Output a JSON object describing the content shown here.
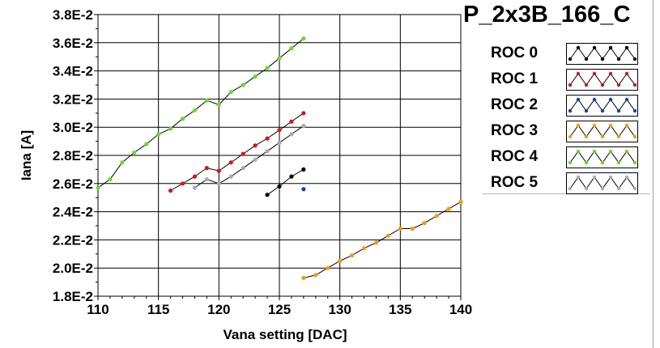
{
  "chart_data": {
    "type": "line",
    "title": "P_2x3B_166_C",
    "xlabel": "Vana setting [DAC]",
    "ylabel": "Iana [A]",
    "xlim": [
      110,
      140
    ],
    "ylim": [
      0.018,
      0.038
    ],
    "xticks": [
      110,
      115,
      120,
      125,
      130,
      135,
      140
    ],
    "xtick_labels": [
      "110",
      "115",
      "120",
      "125",
      "130",
      "135",
      "140"
    ],
    "yticks": [
      0.018,
      0.02,
      0.022,
      0.024,
      0.026,
      0.028,
      0.03,
      0.032,
      0.034,
      0.036,
      0.038
    ],
    "ytick_labels": [
      "1.8E-2",
      "2.0E-2",
      "2.2E-2",
      "2.4E-2",
      "2.6E-2",
      "2.8E-2",
      "3.0E-2",
      "3.2E-2",
      "3.4E-2",
      "3.6E-2",
      "3.8E-2"
    ],
    "grid": true,
    "legend_position": "right",
    "series": [
      {
        "name": "ROC 0",
        "color": "#000000",
        "x": [
          124,
          125,
          126,
          127
        ],
        "y": [
          0.0252,
          0.0258,
          0.0265,
          0.027
        ]
      },
      {
        "name": "ROC 1",
        "color": "#e01010",
        "x": [
          116,
          117,
          118,
          119,
          120,
          121,
          122,
          123,
          124,
          125,
          126,
          127
        ],
        "y": [
          0.0255,
          0.026,
          0.0265,
          0.0271,
          0.0269,
          0.0275,
          0.0281,
          0.0287,
          0.0292,
          0.0298,
          0.0304,
          0.031
        ]
      },
      {
        "name": "ROC 2",
        "color": "#1040c0",
        "x": [
          127
        ],
        "y": [
          0.0256
        ]
      },
      {
        "name": "ROC 3",
        "color": "#ff9900",
        "x": [
          127,
          128,
          129,
          130,
          131,
          132,
          133,
          134,
          135,
          136,
          137,
          138,
          139,
          140
        ],
        "y": [
          0.0193,
          0.0195,
          0.02,
          0.0205,
          0.0209,
          0.0214,
          0.0218,
          0.0223,
          0.0228,
          0.0228,
          0.0232,
          0.0237,
          0.0242,
          0.0247
        ]
      },
      {
        "name": "ROC 4",
        "color": "#66dd22",
        "x": [
          110,
          111,
          112,
          113,
          114,
          115,
          116,
          117,
          118,
          119,
          120,
          121,
          122,
          123,
          124,
          125,
          126,
          127
        ],
        "y": [
          0.0257,
          0.0263,
          0.0275,
          0.0282,
          0.0288,
          0.0295,
          0.0299,
          0.0306,
          0.0312,
          0.0319,
          0.0316,
          0.0325,
          0.033,
          0.0336,
          0.0342,
          0.0349,
          0.0356,
          0.0363
        ]
      },
      {
        "name": "ROC 5",
        "color": "#aaaaaa",
        "x": [
          118,
          119,
          120,
          121,
          122,
          123,
          124,
          125,
          126,
          127
        ],
        "y": [
          0.0257,
          0.0263,
          0.026,
          0.0265,
          0.0271,
          0.0277,
          0.0283,
          0.0289,
          0.0295,
          0.0301
        ]
      }
    ]
  }
}
